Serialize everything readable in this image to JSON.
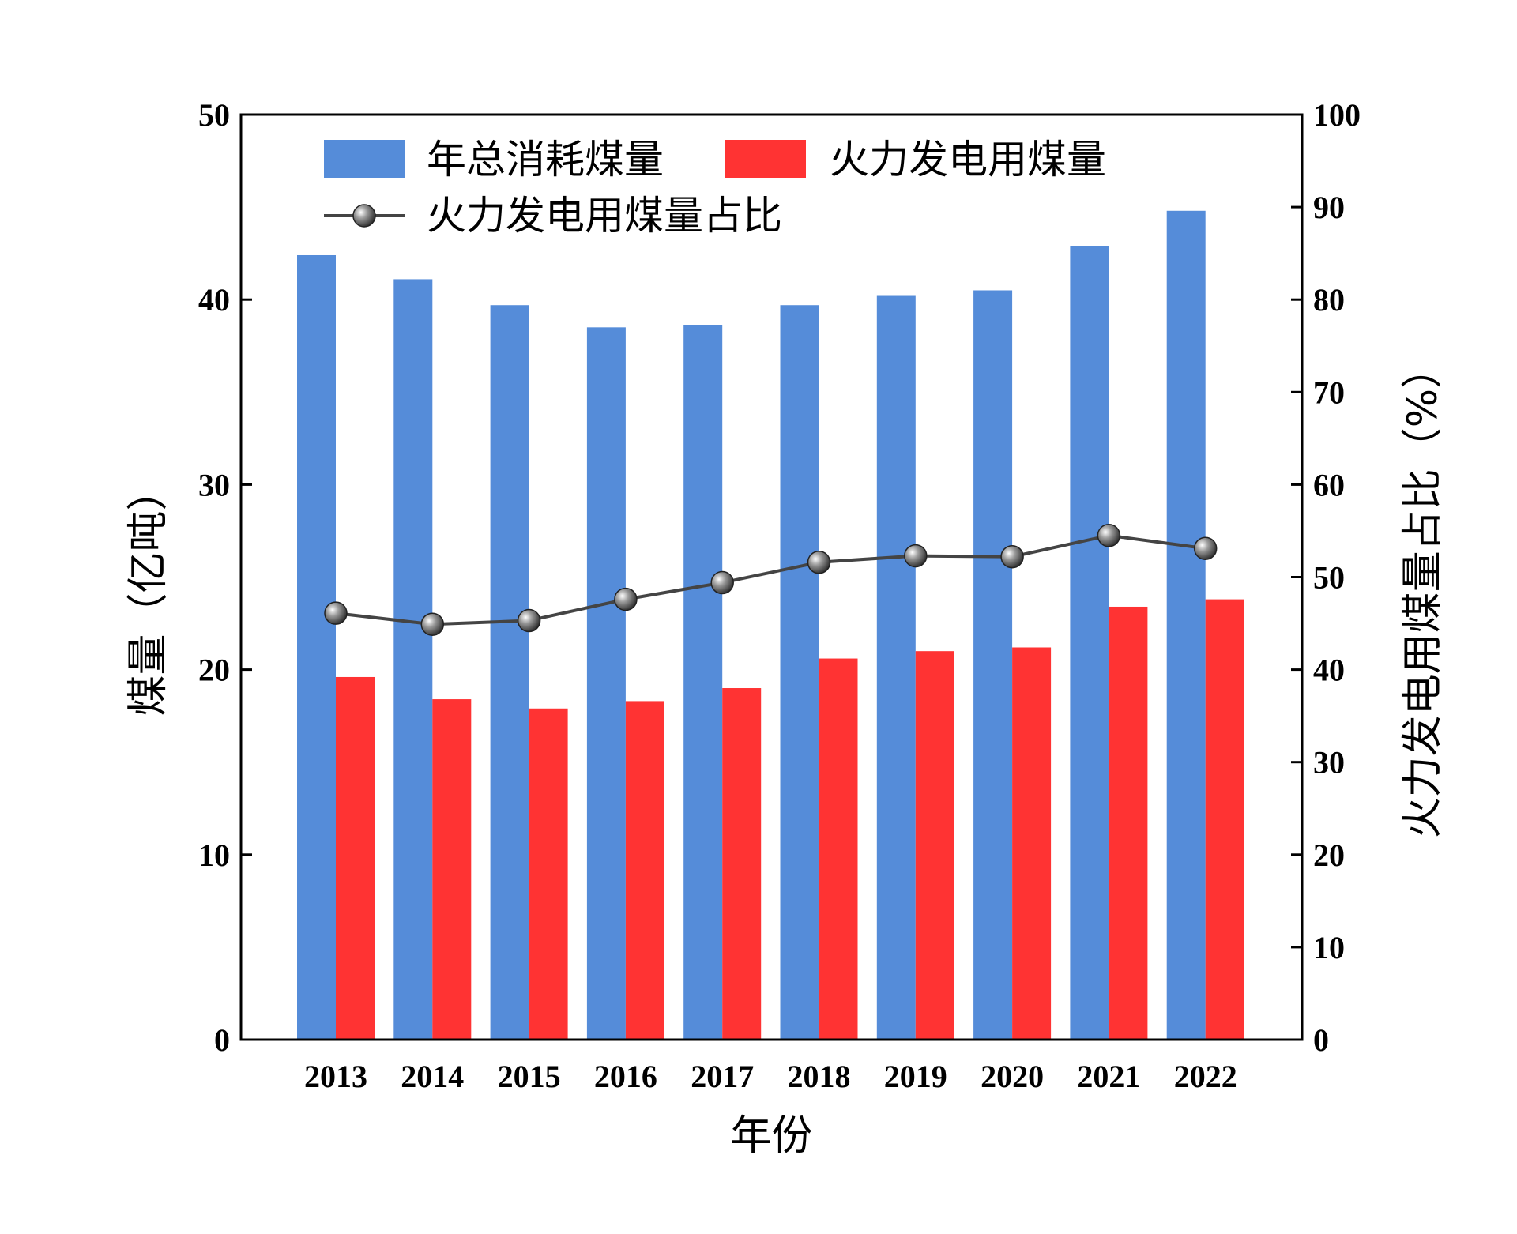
{
  "chart_data": {
    "type": "bar",
    "categories": [
      "2013",
      "2014",
      "2015",
      "2016",
      "2017",
      "2018",
      "2019",
      "2020",
      "2021",
      "2022"
    ],
    "series": [
      {
        "name": "年总消耗煤量",
        "kind": "bar",
        "axis": "left",
        "color": "#558CD9",
        "values": [
          42.4,
          41.1,
          39.7,
          38.5,
          38.6,
          39.7,
          40.2,
          40.5,
          42.9,
          44.8
        ]
      },
      {
        "name": "火力发电用煤量",
        "kind": "bar",
        "axis": "left",
        "color": "#FF3333",
        "values": [
          19.6,
          18.4,
          17.9,
          18.3,
          19.0,
          20.6,
          21.0,
          21.2,
          23.4,
          23.8
        ]
      },
      {
        "name": "火力发电用煤量占比",
        "kind": "line",
        "axis": "right",
        "color": "#444444",
        "marker": "sphere",
        "values": [
          46.1,
          44.9,
          45.3,
          47.6,
          49.4,
          51.6,
          52.3,
          52.2,
          54.5,
          53.1
        ]
      }
    ],
    "xlabel": "年份",
    "ylabel": "煤量（亿吨）",
    "y2label": "火力发电用煤量占比（%）",
    "ylim": [
      0,
      50
    ],
    "y2lim": [
      0,
      100
    ],
    "yticks": [
      "0",
      "10",
      "20",
      "30",
      "40",
      "50"
    ],
    "y2ticks": [
      "0",
      "10",
      "20",
      "30",
      "40",
      "50",
      "60",
      "70",
      "80",
      "90",
      "100"
    ],
    "grid": false,
    "legend": "top-left"
  }
}
